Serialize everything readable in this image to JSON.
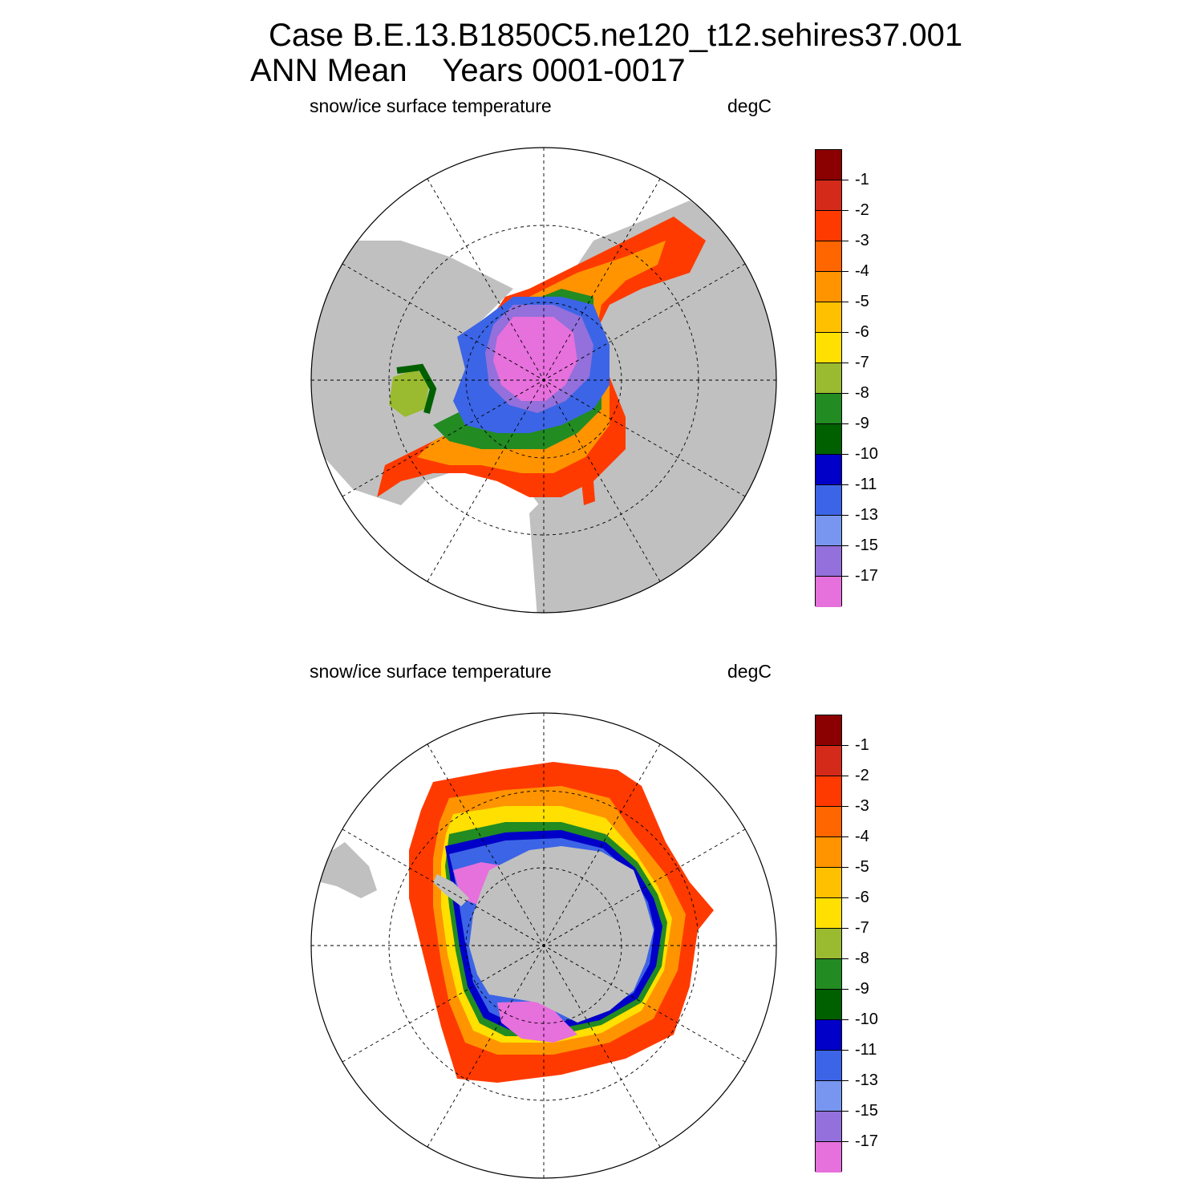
{
  "title": {
    "line1": "Case B.E.13.B1850C5.ne120_t12.sehires37.001",
    "line2": "ANN Mean    Years 0001-0017"
  },
  "panels": [
    {
      "variable": "snow/ice surface temperature",
      "units": "degC",
      "hemisphere": "north"
    },
    {
      "variable": "snow/ice surface temperature",
      "units": "degC",
      "hemisphere": "south"
    }
  ],
  "colorbar": {
    "labels": [
      "-1",
      "-2",
      "-3",
      "-4",
      "-5",
      "-6",
      "-7",
      "-8",
      "-9",
      "-10",
      "-11",
      "-13",
      "-15",
      "-17"
    ],
    "colors": [
      "#8b0000",
      "#d42a1a",
      "#ff3a00",
      "#ff6600",
      "#ff9400",
      "#ffc000",
      "#ffe000",
      "#9aba30",
      "#228b22",
      "#006000",
      "#0000c8",
      "#3c64e6",
      "#7896f0",
      "#9370db",
      "#e670dc"
    ]
  },
  "map_colors": {
    "land": "#c0c0c0",
    "ocean": "#ffffff",
    "grid": "#000000"
  }
}
